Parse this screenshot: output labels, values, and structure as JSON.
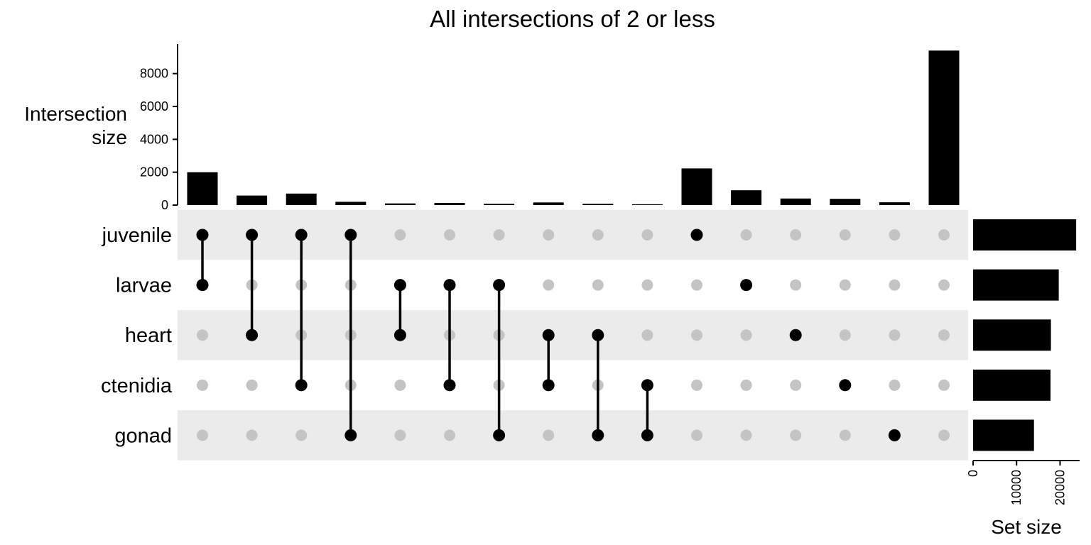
{
  "chart_data": {
    "type": "upset",
    "title": "All intersections of 2 or less",
    "intersection_axis": {
      "label": "Intersection\nsize",
      "ylim": [
        0,
        9800
      ],
      "ticks": [
        0,
        2000,
        4000,
        6000,
        8000
      ]
    },
    "set_size_axis": {
      "label": "Set size",
      "xlim": [
        0,
        24500
      ],
      "ticks": [
        0,
        10000,
        20000
      ]
    },
    "sets": [
      {
        "name": "juvenile",
        "size": 23700
      },
      {
        "name": "larvae",
        "size": 19700
      },
      {
        "name": "heart",
        "size": 17900
      },
      {
        "name": "ctenidia",
        "size": 17800
      },
      {
        "name": "gonad",
        "size": 14000
      }
    ],
    "intersections": [
      {
        "sets": [
          "juvenile",
          "larvae"
        ],
        "size": 2000
      },
      {
        "sets": [
          "juvenile",
          "heart"
        ],
        "size": 580
      },
      {
        "sets": [
          "juvenile",
          "ctenidia"
        ],
        "size": 700
      },
      {
        "sets": [
          "juvenile",
          "gonad"
        ],
        "size": 200
      },
      {
        "sets": [
          "larvae",
          "heart"
        ],
        "size": 100
      },
      {
        "sets": [
          "larvae",
          "ctenidia"
        ],
        "size": 130
      },
      {
        "sets": [
          "larvae",
          "gonad"
        ],
        "size": 80
      },
      {
        "sets": [
          "heart",
          "ctenidia"
        ],
        "size": 160
      },
      {
        "sets": [
          "heart",
          "gonad"
        ],
        "size": 80
      },
      {
        "sets": [
          "ctenidia",
          "gonad"
        ],
        "size": 50
      },
      {
        "sets": [
          "juvenile"
        ],
        "size": 2230
      },
      {
        "sets": [
          "larvae"
        ],
        "size": 900
      },
      {
        "sets": [
          "heart"
        ],
        "size": 400
      },
      {
        "sets": [
          "ctenidia"
        ],
        "size": 380
      },
      {
        "sets": [
          "gonad"
        ],
        "size": 170
      },
      {
        "sets": [],
        "size": 9400
      }
    ],
    "colors": {
      "bar": "#000000",
      "dot_active": "#000000",
      "dot_inactive": "#c4c4c4",
      "band": "#ebebeb"
    }
  }
}
